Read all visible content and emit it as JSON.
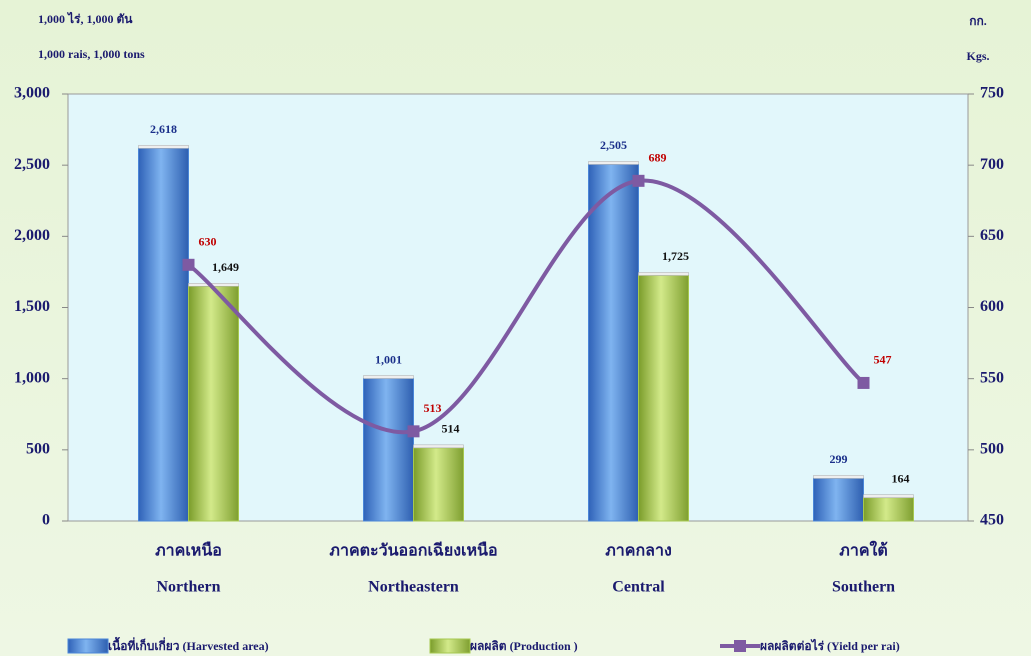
{
  "chart_data": {
    "type": "bar",
    "y_label": [
      "1,000 ไร่,  1,000 ตัน",
      "1,000 rais,  1,000 tons"
    ],
    "y2_label": [
      "กก.",
      "Kgs."
    ],
    "categories": [
      "ภาคเหนือ",
      "ภาคตะวันออกเฉียงเหนือ",
      "ภาคกลาง",
      "ภาคใต้"
    ],
    "categories_en": [
      "Northern",
      "Northeastern",
      "Central",
      "Southern"
    ],
    "series": [
      {
        "name": "เนื้อที่เก็บเกี่ยว  (Harvested  area)",
        "type": "bar",
        "color": "#4a86d8",
        "label_color": "#1a2f8a",
        "values": [
          2618,
          1001,
          2505,
          299
        ],
        "value_labels": [
          "2,618",
          "1,001",
          "2,505",
          "299"
        ]
      },
      {
        "name": "ผลผลิต  (Production )",
        "type": "bar",
        "color": "#a6c850",
        "label_color": "#111111",
        "values": [
          1649,
          514,
          1725,
          164
        ],
        "value_labels": [
          "1,649",
          "514",
          "1,725",
          "164"
        ]
      },
      {
        "name": "ผลผลิตต่อไร่  (Yield per rai)",
        "type": "line",
        "axis": "y2",
        "color": "#7e5aa2",
        "label_color": "#c00000",
        "values": [
          630,
          513,
          689,
          547
        ]
      }
    ],
    "ylim": [
      0,
      3000
    ],
    "yticks": [
      0,
      500,
      {
        "value": 1000,
        "label": "1,000"
      },
      {
        "value": 1500,
        "label": "1,500"
      },
      {
        "value": 2000,
        "label": "2,000"
      },
      {
        "value": 2500,
        "label": "2,500"
      },
      {
        "value": 3000,
        "label": "3,000"
      }
    ],
    "y2lim": [
      450,
      750
    ],
    "y2ticks": [
      450,
      500,
      550,
      600,
      650,
      700,
      750
    ]
  }
}
